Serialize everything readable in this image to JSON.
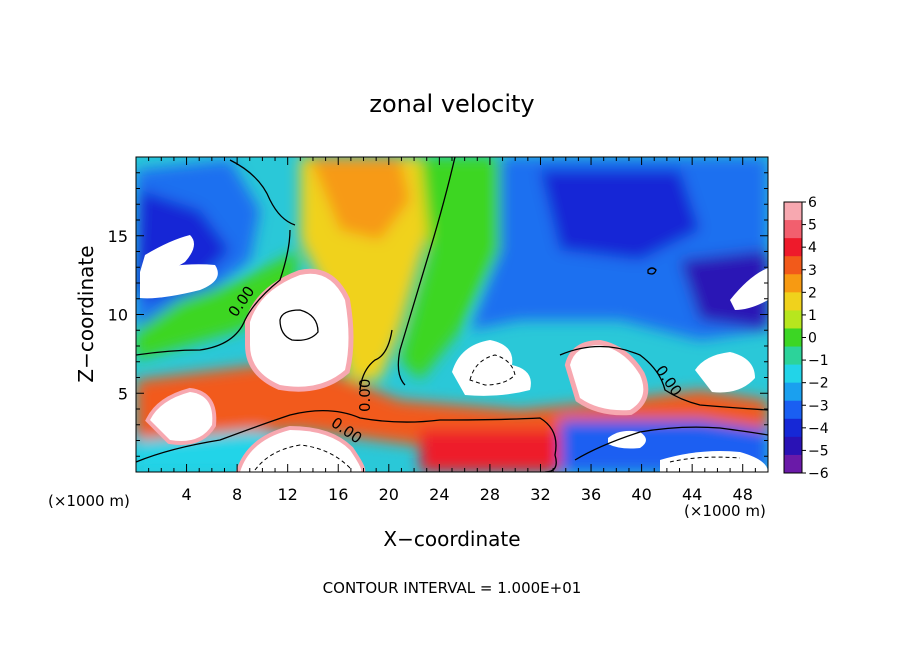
{
  "chart_data": {
    "type": "heatmap",
    "title": "zonal velocity",
    "xlabel": "X−coordinate",
    "ylabel": "Z−coordinate",
    "x_unit": "(×1000 m)",
    "y_unit": "(×1000 m)",
    "x_ticks": [
      "4",
      "8",
      "12",
      "16",
      "20",
      "24",
      "28",
      "32",
      "36",
      "40",
      "44",
      "48"
    ],
    "y_ticks": [
      "5",
      "10",
      "15"
    ],
    "xlim": [
      0,
      50
    ],
    "ylim": [
      0,
      20
    ],
    "colorbar": {
      "ticks": [
        "6",
        "5",
        "4",
        "3",
        "2",
        "1",
        "0",
        "−1",
        "−2",
        "−3",
        "−4",
        "−5",
        "−6"
      ],
      "range": [
        -6,
        6
      ],
      "colors_top_to_bottom": [
        "#f7a8b0",
        "#f25f6e",
        "#ee1a2b",
        "#f25a1a",
        "#f79a12",
        "#f0d21c",
        "#b7e61e",
        "#3cd624",
        "#2cd39a",
        "#22d4e8",
        "#1aa0ef",
        "#1a5ff2",
        "#1628d6",
        "#2a12b5",
        "#6a1aa8"
      ]
    },
    "contour_labels": [
      "0.00",
      "0.00",
      "0.00",
      "0.00"
    ],
    "footer": "CONTOUR INTERVAL = 1.000E+01"
  }
}
